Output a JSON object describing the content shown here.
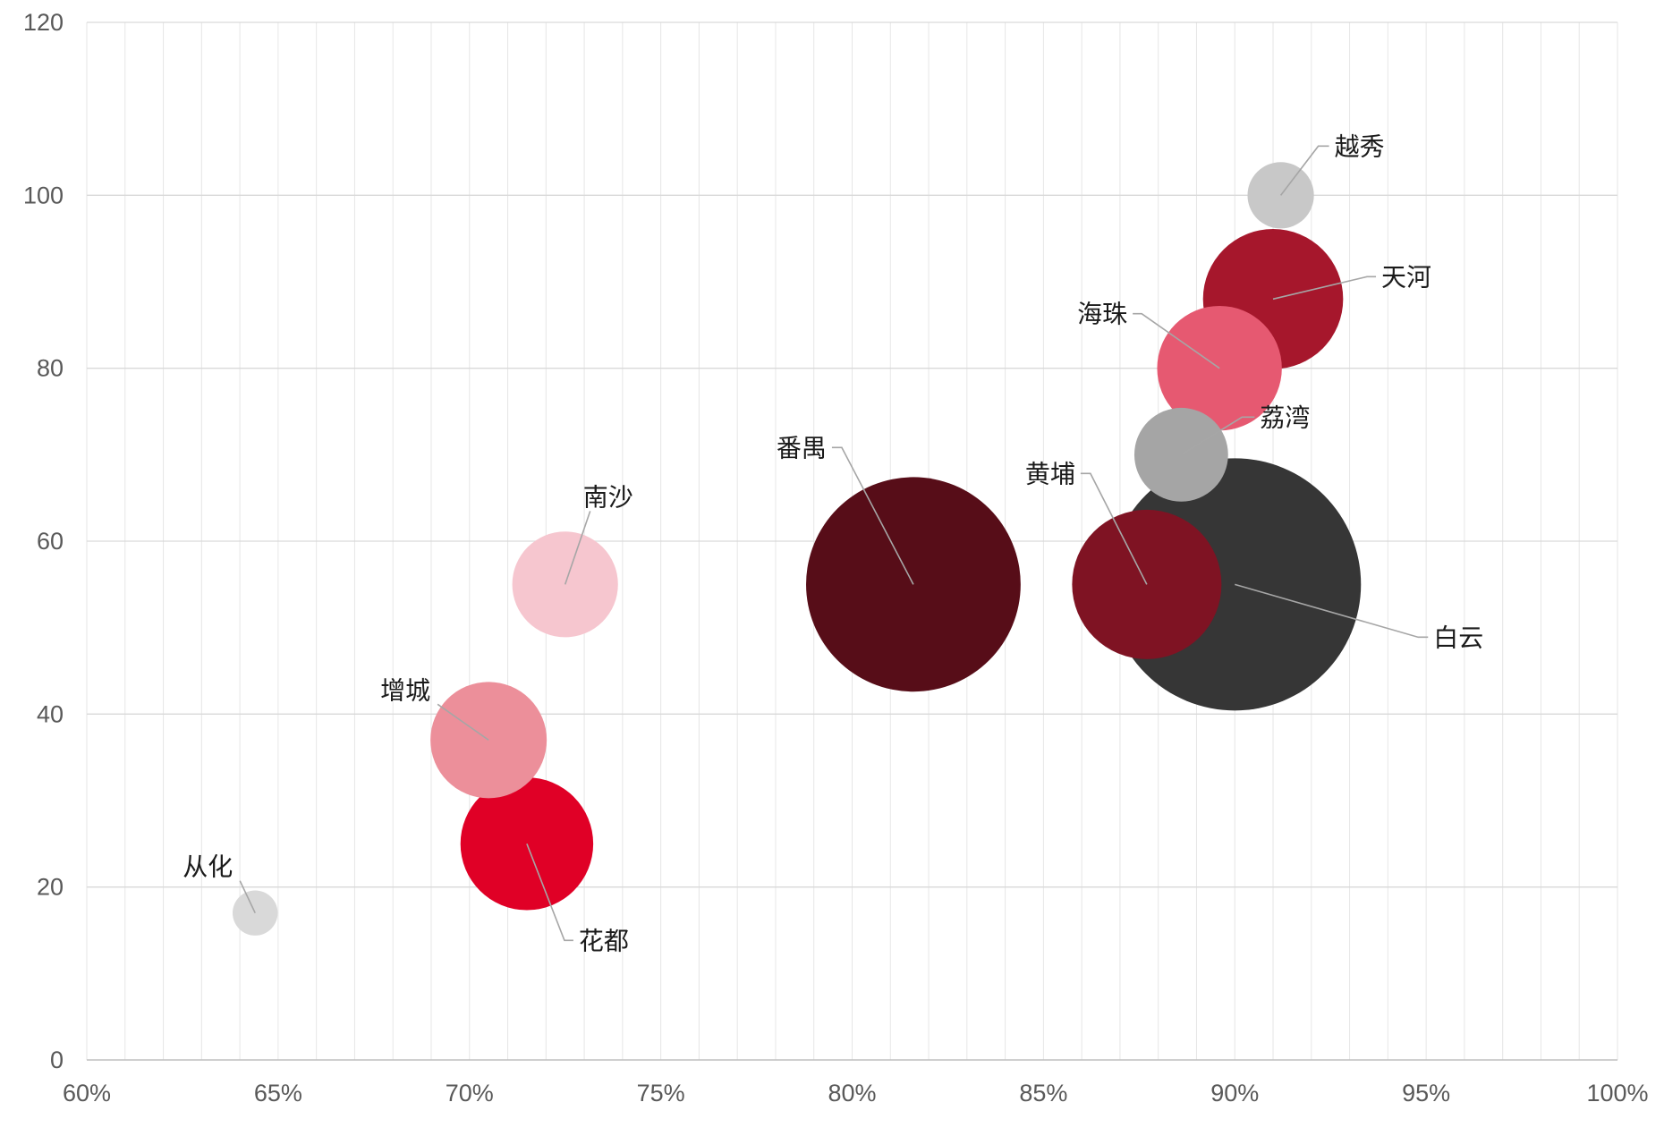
{
  "chart_data": {
    "type": "bubble",
    "x_axis": {
      "min": 0.6,
      "max": 1.0,
      "major_step": 0.05,
      "minor_step": 0.01,
      "tick_labels": [
        "60%",
        "65%",
        "70%",
        "75%",
        "80%",
        "85%",
        "90%",
        "95%",
        "100%"
      ]
    },
    "y_axis": {
      "min": 0,
      "max": 120,
      "major_step": 20,
      "tick_labels": [
        "0",
        "20",
        "40",
        "60",
        "80",
        "100",
        "120"
      ]
    },
    "grid": {
      "vertical_minor": true,
      "horizontal_major": true
    },
    "legend": "none",
    "points": [
      {
        "label": "从化",
        "x": 0.644,
        "y": 17,
        "size": 6,
        "color": "#d9d9d9"
      },
      {
        "label": "花都",
        "x": 0.715,
        "y": 25,
        "size": 52,
        "color": "#e00026"
      },
      {
        "label": "增城",
        "x": 0.705,
        "y": 37,
        "size": 40,
        "color": "#ec8f9a"
      },
      {
        "label": "南沙",
        "x": 0.725,
        "y": 55,
        "size": 33,
        "color": "#f6c6cf"
      },
      {
        "label": "番禺",
        "x": 0.816,
        "y": 55,
        "size": 136,
        "color": "#570d18"
      },
      {
        "label": "白云",
        "x": 0.9,
        "y": 55,
        "size": 188,
        "color": "#363636"
      },
      {
        "label": "黄埔",
        "x": 0.877,
        "y": 55,
        "size": 66,
        "color": "#7f1323"
      },
      {
        "label": "荔湾",
        "x": 0.886,
        "y": 70,
        "size": 26,
        "color": "#a5a5a5"
      },
      {
        "label": "海珠",
        "x": 0.896,
        "y": 80,
        "size": 46,
        "color": "#e65971"
      },
      {
        "label": "天河",
        "x": 0.91,
        "y": 88,
        "size": 58,
        "color": "#a6172c"
      },
      {
        "label": "越秀",
        "x": 0.912,
        "y": 100,
        "size": 13,
        "color": "#c8c8c8"
      }
    ]
  }
}
